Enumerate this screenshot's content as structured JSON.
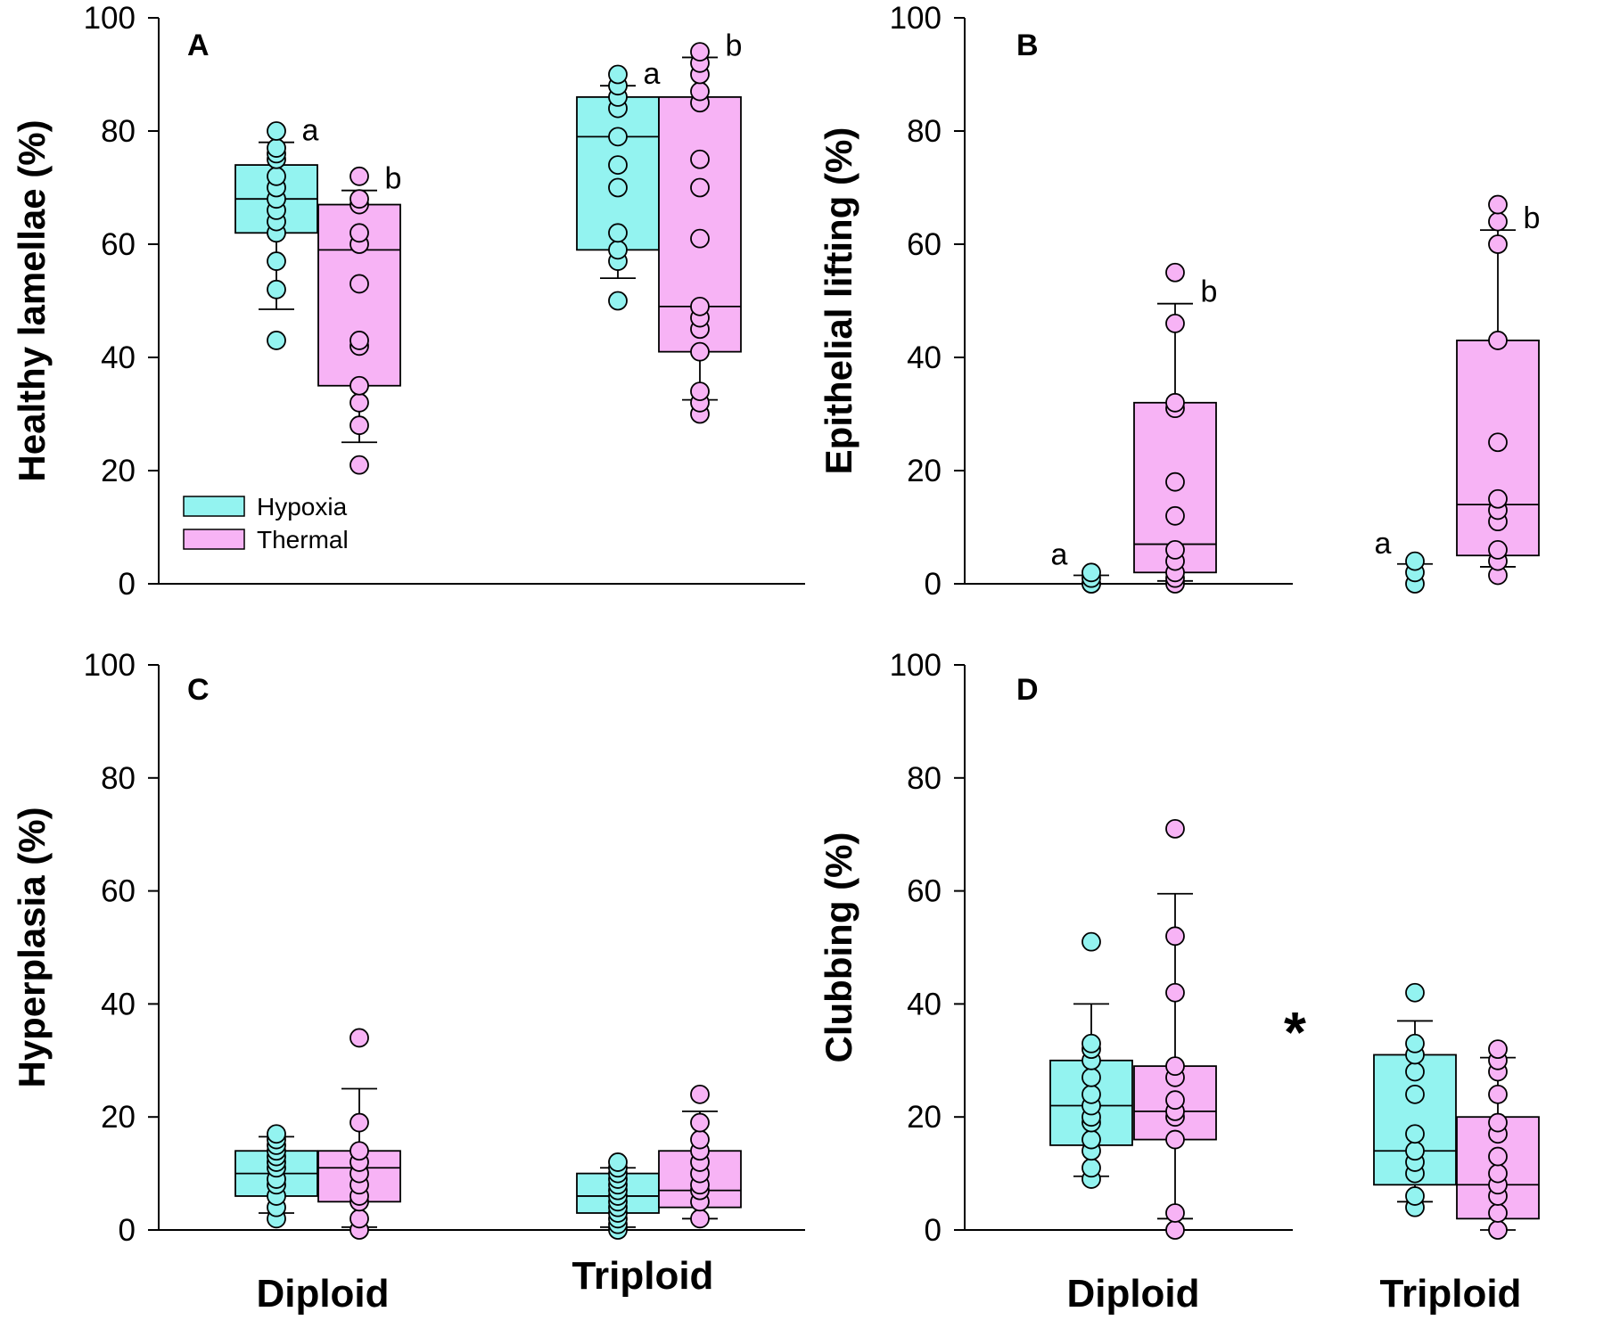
{
  "colors": {
    "hypoxia": "#93F3F0",
    "thermal": "#F7B3F5",
    "stroke": "#000000"
  },
  "legend": {
    "hypoxia": "Hypoxia",
    "thermal": "Thermal"
  },
  "groups": [
    "Diploid",
    "Triploid"
  ],
  "chart_data": [
    {
      "type": "box",
      "panel": "A",
      "ylabel": "Healthy lamellae (%)",
      "ylim": [
        0,
        100
      ],
      "yticks": [
        "0",
        "20",
        "40",
        "60",
        "80",
        "100"
      ],
      "series": [
        {
          "name": "Hypoxia",
          "group": "Diploid",
          "q1": 62,
          "median": 68,
          "q3": 74,
          "whisker_low": 48.5,
          "whisker_high": 78,
          "letter": "a",
          "points": [
            43,
            52,
            57,
            62,
            64,
            66,
            68,
            70,
            72,
            75,
            76,
            77,
            80
          ]
        },
        {
          "name": "Thermal",
          "group": "Diploid",
          "q1": 35,
          "median": 59,
          "q3": 67,
          "whisker_low": 25,
          "whisker_high": 69.5,
          "letter": "b",
          "points": [
            21,
            28,
            32,
            35,
            42,
            43,
            53,
            60,
            62,
            67,
            68,
            72
          ]
        },
        {
          "name": "Hypoxia",
          "group": "Triploid",
          "q1": 59,
          "median": 79,
          "q3": 86,
          "whisker_low": 54,
          "whisker_high": 88,
          "letter": "a",
          "points": [
            50,
            57,
            59,
            62,
            70,
            74,
            79,
            84,
            86,
            88,
            90
          ]
        },
        {
          "name": "Thermal",
          "group": "Triploid",
          "q1": 41,
          "median": 49,
          "q3": 86,
          "whisker_low": 32.5,
          "whisker_high": 93,
          "letter": "b",
          "points": [
            30,
            32,
            34,
            41,
            45,
            47,
            49,
            61,
            70,
            75,
            85,
            87,
            90,
            92,
            94
          ]
        }
      ]
    },
    {
      "type": "box",
      "panel": "B",
      "ylabel": "Epithelial lifting (%)",
      "ylim": [
        0,
        100
      ],
      "yticks": [
        "0",
        "20",
        "40",
        "60",
        "80",
        "100"
      ],
      "series": [
        {
          "name": "Hypoxia",
          "group": "Diploid",
          "q1": 0,
          "median": 0,
          "q3": 0,
          "whisker_low": 0,
          "whisker_high": 1.5,
          "letter": "a",
          "points": [
            0,
            0,
            1,
            2
          ]
        },
        {
          "name": "Thermal",
          "group": "Diploid",
          "q1": 2,
          "median": 7,
          "q3": 32,
          "whisker_low": 0.5,
          "whisker_high": 49.5,
          "letter": "b",
          "points": [
            0,
            1,
            2,
            4,
            6,
            12,
            18,
            31,
            32,
            46,
            55
          ]
        },
        {
          "name": "Hypoxia",
          "group": "Triploid",
          "q1": 0,
          "median": 0,
          "q3": 0,
          "whisker_low": 0,
          "whisker_high": 3.5,
          "letter": "a",
          "points": [
            0,
            2,
            4
          ]
        },
        {
          "name": "Thermal",
          "group": "Triploid",
          "q1": 5,
          "median": 14,
          "q3": 43,
          "whisker_low": 3,
          "whisker_high": 62.5,
          "letter": "b",
          "points": [
            1.5,
            4,
            6,
            11,
            13,
            15,
            25,
            43,
            60,
            64,
            67
          ]
        }
      ]
    },
    {
      "type": "box",
      "panel": "C",
      "ylabel": "Hyperplasia (%)",
      "ylim": [
        0,
        100
      ],
      "yticks": [
        "0",
        "20",
        "40",
        "60",
        "80",
        "100"
      ],
      "series": [
        {
          "name": "Hypoxia",
          "group": "Diploid",
          "q1": 6,
          "median": 10,
          "q3": 14,
          "whisker_low": 3,
          "whisker_high": 16.5,
          "letter": "",
          "points": [
            2,
            4,
            6,
            8,
            9,
            11,
            12,
            13,
            14,
            15,
            16,
            17
          ]
        },
        {
          "name": "Thermal",
          "group": "Diploid",
          "q1": 5,
          "median": 11,
          "q3": 14,
          "whisker_low": 0.5,
          "whisker_high": 25,
          "letter": "",
          "points": [
            0,
            2,
            5,
            6,
            8,
            10,
            12,
            14,
            19,
            34
          ]
        },
        {
          "name": "Hypoxia",
          "group": "Triploid",
          "q1": 3,
          "median": 6,
          "q3": 10,
          "whisker_low": 0.5,
          "whisker_high": 11,
          "letter": "",
          "points": [
            0,
            1,
            2,
            3,
            4,
            5,
            6,
            7,
            8,
            9,
            10,
            11,
            12
          ]
        },
        {
          "name": "Thermal",
          "group": "Triploid",
          "q1": 4,
          "median": 7,
          "q3": 14,
          "whisker_low": 2,
          "whisker_high": 21,
          "letter": "",
          "points": [
            2,
            5,
            7,
            8,
            10,
            12,
            14,
            16,
            19,
            24
          ]
        }
      ]
    },
    {
      "type": "box",
      "panel": "D",
      "ylabel": "Clubbing (%)",
      "ylim": [
        0,
        100
      ],
      "yticks": [
        "0",
        "20",
        "40",
        "60",
        "80",
        "100"
      ],
      "annotation": "*",
      "series": [
        {
          "name": "Hypoxia",
          "group": "Diploid",
          "q1": 15,
          "median": 22,
          "q3": 30,
          "whisker_low": 9.5,
          "whisker_high": 40,
          "letter": "",
          "points": [
            9,
            11,
            14,
            16,
            19,
            20,
            22,
            24,
            27,
            30,
            32,
            33,
            51
          ]
        },
        {
          "name": "Thermal",
          "group": "Diploid",
          "q1": 16,
          "median": 21,
          "q3": 29,
          "whisker_low": 2,
          "whisker_high": 59.5,
          "letter": "",
          "points": [
            0,
            3,
            16,
            20,
            21,
            23,
            27,
            29,
            42,
            52,
            71
          ]
        },
        {
          "name": "Hypoxia",
          "group": "Triploid",
          "q1": 8,
          "median": 14,
          "q3": 31,
          "whisker_low": 5,
          "whisker_high": 37,
          "letter": "",
          "points": [
            4,
            6,
            10,
            12,
            14,
            17,
            24,
            28,
            31,
            33,
            42
          ]
        },
        {
          "name": "Thermal",
          "group": "Triploid",
          "q1": 2,
          "median": 8,
          "q3": 20,
          "whisker_low": 0,
          "whisker_high": 30.5,
          "letter": "",
          "points": [
            0,
            3,
            6,
            8,
            10,
            13,
            17,
            19,
            24,
            28,
            30,
            32
          ]
        }
      ]
    }
  ]
}
